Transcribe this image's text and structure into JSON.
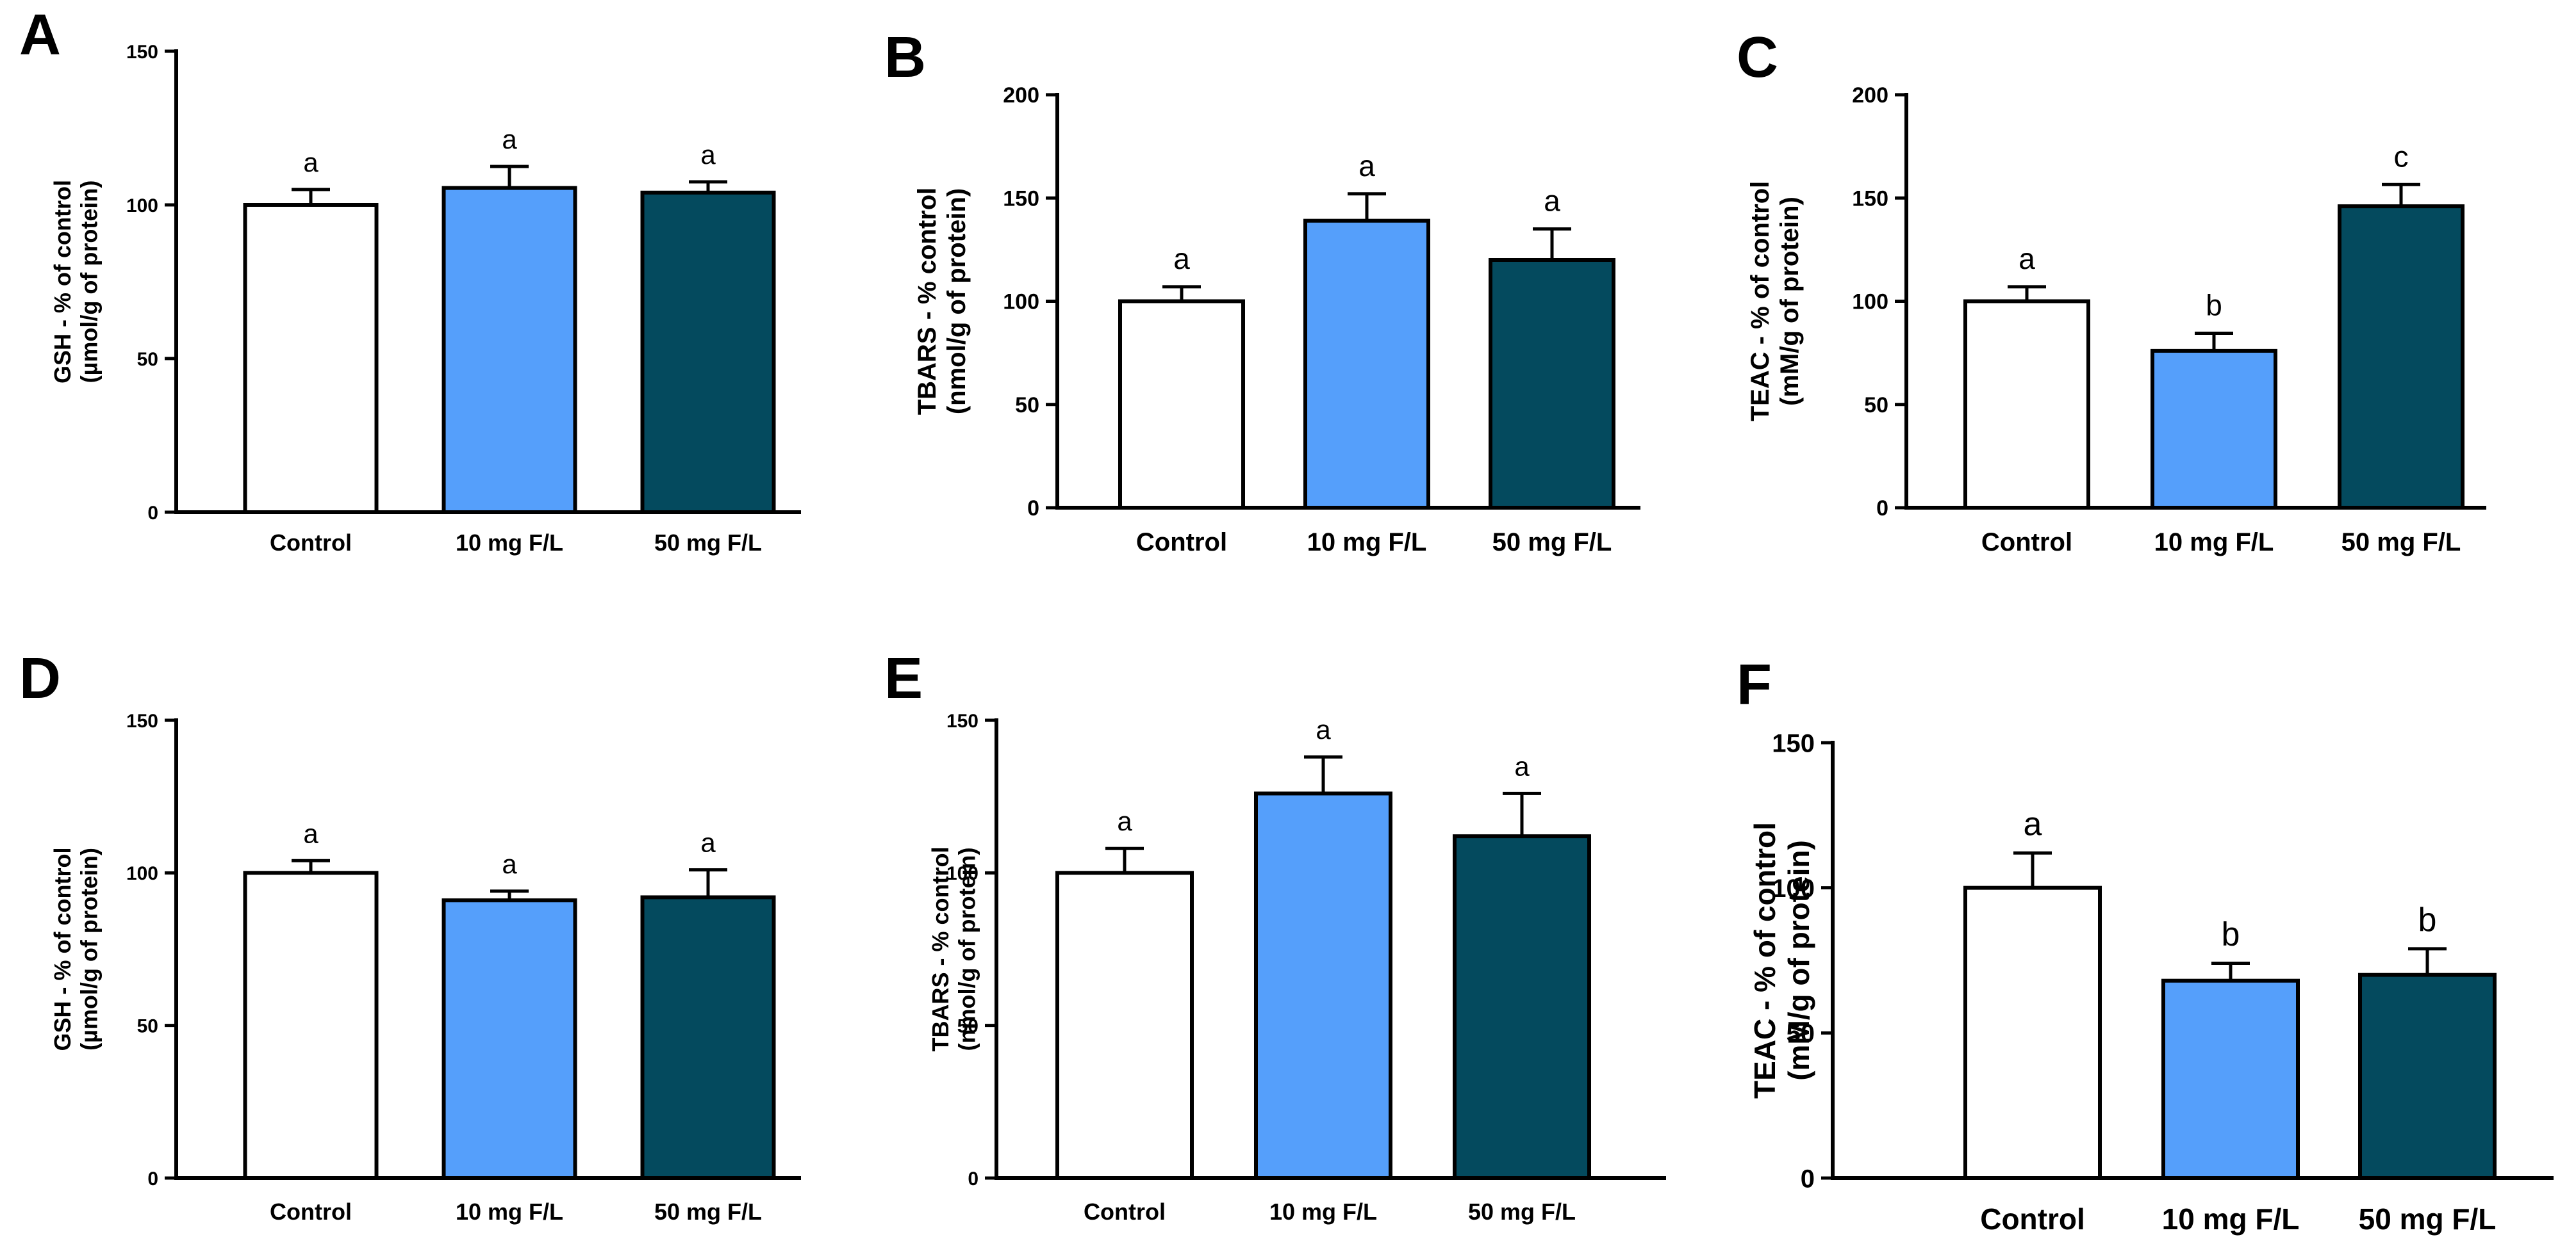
{
  "figure_title": "",
  "colors": {
    "control": "#ffffff",
    "low": "#559ffb",
    "high": "#044a5e",
    "outline": "#000000"
  },
  "chart_data": [
    {
      "panel": "A",
      "type": "bar",
      "categories": [
        "Control",
        "10 mg F/L",
        "50 mg F/L"
      ],
      "values": [
        100,
        105.5,
        104
      ],
      "errors": [
        5,
        7,
        3.5
      ],
      "letters": [
        "a",
        "a",
        "a"
      ],
      "ylabel_line1": "GSH - % of control",
      "ylabel_line2": "(µmol/g of protein)",
      "ylim": [
        0,
        150
      ],
      "yticks": [
        0,
        50,
        100,
        150
      ],
      "xlabel": "",
      "title": ""
    },
    {
      "panel": "B",
      "type": "bar",
      "categories": [
        "Control",
        "10 mg F/L",
        "50 mg F/L"
      ],
      "values": [
        100,
        139,
        120
      ],
      "errors": [
        7,
        13,
        15
      ],
      "letters": [
        "a",
        "a",
        "a"
      ],
      "ylabel_line1": "TBARS - % control",
      "ylabel_line2": "(nmol/g of protein)",
      "ylim": [
        0,
        200
      ],
      "yticks": [
        0,
        50,
        100,
        150,
        200
      ],
      "xlabel": "",
      "title": ""
    },
    {
      "panel": "C",
      "type": "bar",
      "categories": [
        "Control",
        "10 mg F/L",
        "50 mg F/L"
      ],
      "values": [
        100,
        76,
        146
      ],
      "errors": [
        7,
        8.5,
        10.5
      ],
      "letters": [
        "a",
        "b",
        "c"
      ],
      "ylabel_line1": "TEAC - % of control",
      "ylabel_line2": "(mM/g of protein)",
      "ylim": [
        0,
        200
      ],
      "yticks": [
        0,
        50,
        100,
        150,
        200
      ],
      "xlabel": "",
      "title": ""
    },
    {
      "panel": "D",
      "type": "bar",
      "categories": [
        "Control",
        "10 mg F/L",
        "50 mg F/L"
      ],
      "values": [
        100,
        91,
        92
      ],
      "errors": [
        4,
        3,
        9
      ],
      "letters": [
        "a",
        "a",
        "a"
      ],
      "ylabel_line1": "GSH - % of control",
      "ylabel_line2": "(µmol/g of protein)",
      "ylim": [
        0,
        150
      ],
      "yticks": [
        0,
        50,
        100,
        150
      ],
      "xlabel": "",
      "title": ""
    },
    {
      "panel": "E",
      "type": "bar",
      "categories": [
        "Control",
        "10 mg F/L",
        "50 mg F/L"
      ],
      "values": [
        100,
        126,
        112
      ],
      "errors": [
        8,
        12,
        14
      ],
      "letters": [
        "a",
        "a",
        "a"
      ],
      "ylabel_line1": "TBARS - % control",
      "ylabel_line2": "(nmol/g of protein)",
      "ylim": [
        0,
        150
      ],
      "yticks": [
        0,
        50,
        100,
        150
      ],
      "xlabel": "",
      "title": ""
    },
    {
      "panel": "F",
      "type": "bar",
      "categories": [
        "Control",
        "10 mg F/L",
        "50 mg F/L"
      ],
      "values": [
        100,
        68,
        70
      ],
      "errors": [
        12,
        6,
        9
      ],
      "letters": [
        "a",
        "b",
        "b"
      ],
      "ylabel_line1": "TEAC - % of control",
      "ylabel_line2": "(mM/g of protein)",
      "ylim": [
        0,
        150
      ],
      "yticks": [
        0,
        50,
        100,
        150
      ],
      "xlabel": "",
      "title": ""
    }
  ]
}
